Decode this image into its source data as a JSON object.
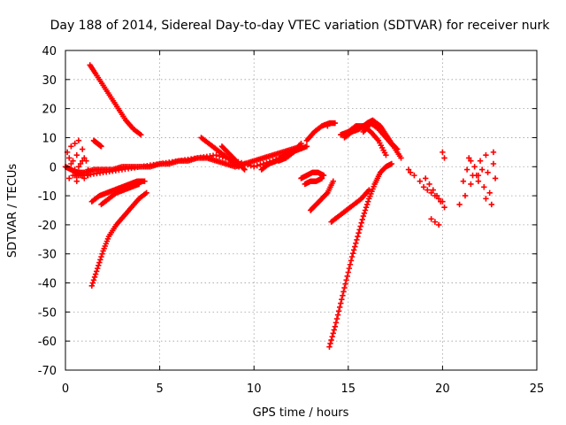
{
  "chart_data": {
    "type": "scatter",
    "title": "Day 188 of 2014, Sidereal Day-to-day VTEC variation (SDTVAR) for receiver nurk",
    "xlabel": "GPS time / hours",
    "ylabel": "SDTVAR / TECUs",
    "xlim": [
      0,
      25
    ],
    "ylim": [
      -70,
      40
    ],
    "x_ticks": [
      0,
      5,
      10,
      15,
      20,
      25
    ],
    "x_tick_labels": [
      "0",
      "5",
      "10",
      "15",
      "20",
      "25"
    ],
    "y_ticks": [
      40,
      30,
      20,
      10,
      0,
      -10,
      -20,
      -30,
      -40,
      -50,
      -60,
      -70
    ],
    "y_tick_labels": [
      "40",
      "30",
      "20",
      "10",
      "0",
      "-10",
      "-20",
      "-30",
      "-40",
      "-50",
      "-60",
      "-70"
    ],
    "grid": true,
    "marker": "+",
    "color": "#ff0000",
    "series": [
      {
        "name": "arc-main-band",
        "x": [
          0.0,
          0.3,
          0.6,
          1.0,
          1.5,
          2.0,
          2.5,
          3.0,
          3.5,
          4.0,
          4.5,
          5.0,
          5.5,
          6.0,
          6.5,
          7.0,
          7.5,
          8.0,
          8.5,
          9.0,
          9.5,
          10.0,
          10.5,
          11.0,
          11.5,
          12.0,
          12.5
        ],
        "y": [
          0,
          -1,
          -2,
          -2,
          -1,
          -1,
          -1,
          0,
          0,
          0,
          0,
          1,
          1,
          2,
          2,
          3,
          3,
          2,
          1,
          0,
          1,
          2,
          3,
          4,
          5,
          6,
          7
        ]
      },
      {
        "name": "arc-main-band-2",
        "x": [
          0.5,
          1.0,
          2.0,
          3.0,
          4.0,
          5.0,
          6.0,
          7.0,
          8.0,
          9.0,
          10.0,
          11.0,
          12.0
        ],
        "y": [
          -3,
          -3,
          -2,
          -1,
          0,
          1,
          2,
          3,
          4,
          2,
          0,
          2,
          5
        ]
      },
      {
        "name": "arc-falling-35",
        "x": [
          1.3,
          1.6,
          2.0,
          2.4,
          2.8,
          3.2,
          3.6,
          4.0
        ],
        "y": [
          35,
          32,
          28,
          24,
          20,
          16,
          13,
          11
        ]
      },
      {
        "name": "arc-rising-41",
        "x": [
          1.4,
          1.7,
          2.0,
          2.3,
          2.7,
          3.1,
          3.5,
          3.9,
          4.3
        ],
        "y": [
          -41,
          -35,
          -29,
          -24,
          -20,
          -17,
          -14,
          -11,
          -9
        ]
      },
      {
        "name": "arc-rising-12",
        "x": [
          1.4,
          1.8,
          2.2,
          2.6,
          3.0,
          3.4,
          3.8,
          4.2
        ],
        "y": [
          -12,
          -10,
          -9,
          -8,
          -7,
          -6,
          -5,
          -5
        ]
      },
      {
        "name": "arc-rising-13",
        "x": [
          1.9,
          2.3,
          2.7,
          3.1,
          3.5,
          3.9
        ],
        "y": [
          -13,
          -11,
          -9,
          -8,
          -7,
          -6
        ]
      },
      {
        "name": "arc-early-scatter",
        "x": [
          0.1,
          0.2,
          0.3,
          0.4,
          0.5,
          0.6,
          0.7,
          0.8,
          0.9,
          1.0,
          1.1,
          1.2,
          0.2,
          0.4,
          0.6,
          0.8,
          1.0,
          1.2,
          0.3,
          0.5,
          0.7,
          0.9,
          1.1
        ],
        "y": [
          5,
          3,
          7,
          2,
          8,
          4,
          9,
          1,
          6,
          3,
          2,
          -1,
          -4,
          -3,
          -5,
          -2,
          -4,
          -3,
          1,
          -1,
          0,
          2,
          -2
        ]
      },
      {
        "name": "arc-small-1-5",
        "x": [
          1.5,
          1.7,
          1.9
        ],
        "y": [
          9,
          8,
          7
        ]
      },
      {
        "name": "arc-afternoon-1",
        "x": [
          7.2,
          7.6,
          8.0,
          8.4,
          8.8,
          9.2
        ],
        "y": [
          10,
          8,
          6,
          4,
          2,
          0
        ]
      },
      {
        "name": "arc-afternoon-2",
        "x": [
          8.3,
          8.6,
          8.9,
          9.2,
          9.5
        ],
        "y": [
          7,
          5,
          3,
          1,
          -1
        ]
      },
      {
        "name": "arc-afternoon-3",
        "x": [
          10.4,
          10.8,
          11.2,
          11.6,
          12.0,
          12.4,
          12.8
        ],
        "y": [
          -1,
          1,
          2,
          4,
          5,
          6,
          7
        ]
      },
      {
        "name": "arc-afternoon-4",
        "x": [
          11.3,
          11.7,
          12.1,
          12.5
        ],
        "y": [
          2,
          3,
          5,
          8
        ]
      },
      {
        "name": "arc-minus-4",
        "x": [
          12.5,
          12.8,
          13.1,
          13.4,
          13.7
        ],
        "y": [
          -4,
          -3,
          -2,
          -2,
          -3
        ]
      },
      {
        "name": "arc-minus-15",
        "x": [
          13.0,
          13.3,
          13.6,
          13.9,
          14.2
        ],
        "y": [
          -15,
          -13,
          -11,
          -9,
          -5
        ]
      },
      {
        "name": "arc-minus-6",
        "x": [
          12.7,
          13.0,
          13.3,
          13.6
        ],
        "y": [
          -6,
          -5,
          -5,
          -4
        ]
      },
      {
        "name": "arc-15-top",
        "x": [
          12.8,
          13.2,
          13.6,
          14.0,
          14.3
        ],
        "y": [
          9,
          12,
          14,
          15,
          15
        ]
      },
      {
        "name": "arc-deep",
        "x": [
          14.0,
          14.3,
          14.6,
          14.9,
          15.2,
          15.5,
          15.8,
          16.1,
          16.4,
          16.7,
          17.0,
          17.3
        ],
        "y": [
          -62,
          -55,
          -47,
          -39,
          -31,
          -24,
          -17,
          -11,
          -6,
          -2,
          0,
          1
        ]
      },
      {
        "name": "arc-minus-19",
        "x": [
          14.1,
          14.5,
          14.9,
          15.3,
          15.7,
          16.1
        ],
        "y": [
          -19,
          -17,
          -15,
          -13,
          -11,
          -8
        ]
      },
      {
        "name": "arc-peak-16",
        "x": [
          14.8,
          15.2,
          15.6,
          16.0,
          16.3,
          16.7,
          17.0,
          17.3,
          17.6
        ],
        "y": [
          10,
          12,
          13,
          15,
          16,
          14,
          11,
          8,
          6
        ]
      },
      {
        "name": "arc-peak-14",
        "x": [
          14.6,
          15.0,
          15.4,
          15.8,
          16.2,
          16.6,
          17.0
        ],
        "y": [
          11,
          12,
          14,
          14,
          12,
          9,
          4
        ]
      },
      {
        "name": "arc-peak-12",
        "x": [
          15.8,
          16.2,
          16.6,
          17.0,
          17.4,
          17.8
        ],
        "y": [
          12,
          15,
          13,
          10,
          7,
          3
        ]
      },
      {
        "name": "arc-evening",
        "x": [
          18.2,
          18.5,
          18.8,
          19.0,
          19.2,
          19.4,
          19.6,
          19.8,
          20.0,
          19.1,
          19.3,
          19.5,
          19.7,
          19.9,
          20.1,
          19.4,
          19.6,
          19.8
        ],
        "y": [
          -1,
          -3,
          -5,
          -7,
          -8,
          -9,
          -10,
          -11,
          -12,
          -4,
          -6,
          -8,
          -10,
          -12,
          -14,
          -18,
          -19,
          -20
        ]
      },
      {
        "name": "arc-night",
        "x": [
          20.9,
          21.2,
          21.5,
          21.8,
          22.1,
          22.4,
          22.7,
          21.3,
          21.6,
          21.9,
          22.2,
          22.5,
          22.8,
          21.4,
          21.7,
          22.0,
          22.3,
          22.6,
          21.1,
          21.5,
          21.9,
          22.3,
          22.7
        ],
        "y": [
          -13,
          -10,
          -6,
          -3,
          -1,
          -2,
          1,
          -1,
          -3,
          -5,
          -7,
          -9,
          -4,
          3,
          0,
          2,
          -11,
          -13,
          -5,
          2,
          -3,
          4,
          5
        ]
      },
      {
        "name": "arc-isolated",
        "x": [
          13.9,
          15.0,
          18.3,
          20.1,
          20.0
        ],
        "y": [
          14,
          12,
          -2,
          3,
          5
        ]
      }
    ]
  }
}
